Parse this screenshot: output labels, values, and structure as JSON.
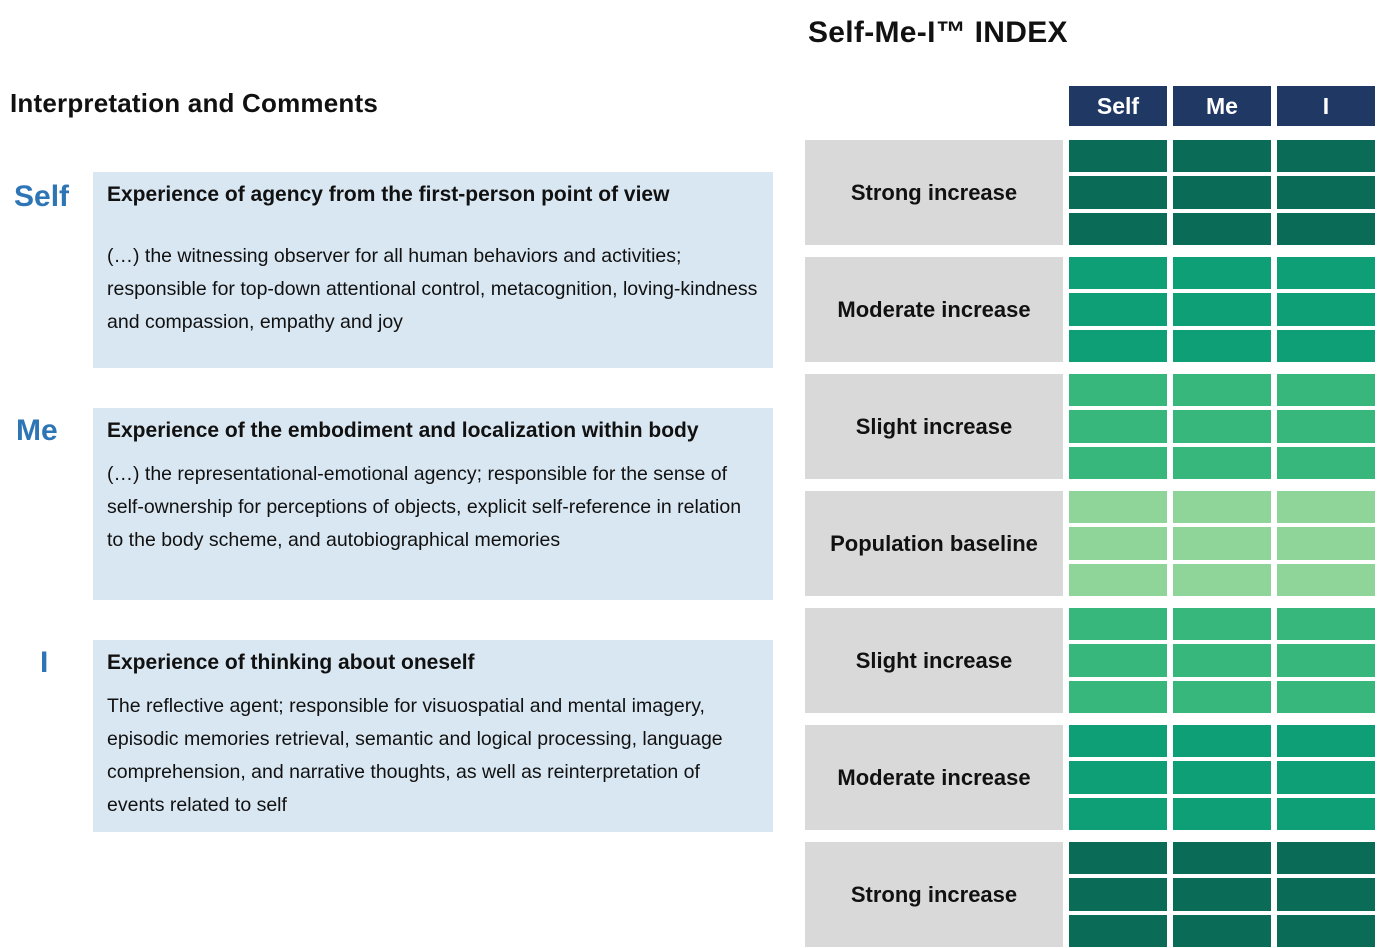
{
  "page": {
    "title": "Self-Me-I™ INDEX",
    "left_heading": "Interpretation and Comments"
  },
  "sections": [
    {
      "label": "Self",
      "title": "Experience of agency from the first-person point of view",
      "body": "(…) the witnessing observer for all human behaviors and activities; responsible for top-down attentional control, metacognition, loving-kindness and compassion, empathy and joy"
    },
    {
      "label": "Me",
      "title": "Experience of the embodiment and localization within body",
      "body": "(…) the representational-emotional agency; responsible for the sense of self-ownership for perceptions of objects, explicit self-reference in relation to the body scheme, and autobiographical memories"
    },
    {
      "label": "I",
      "title": "Experience of thinking about oneself",
      "body": "The reflective agent; responsible for visuospatial and mental imagery, episodic memories retrieval, semantic and logical processing, language comprehension, and narrative thoughts, as well as reinterpretation of events related to self"
    }
  ],
  "index_table": {
    "columns": [
      "Self",
      "Me",
      "I"
    ],
    "rows_per_band": 3,
    "levels": {
      "strong": "#0a6c56",
      "moderate": "#0f9f77",
      "slight": "#38b77d",
      "baseline": "#8fd59a"
    },
    "bands": [
      {
        "label": "Strong increase",
        "level": "strong"
      },
      {
        "label": "Moderate increase",
        "level": "moderate"
      },
      {
        "label": "Slight increase",
        "level": "slight"
      },
      {
        "label": "Population baseline",
        "level": "baseline"
      },
      {
        "label": "Slight increase",
        "level": "slight"
      },
      {
        "label": "Moderate increase",
        "level": "moderate"
      },
      {
        "label": "Strong increase",
        "level": "strong"
      }
    ]
  },
  "colors": {
    "header_navy": "#1f3864",
    "label_gray": "#d9d9d9",
    "info_box_blue": "#d9e7f2",
    "section_label_blue": "#2e75b6"
  }
}
